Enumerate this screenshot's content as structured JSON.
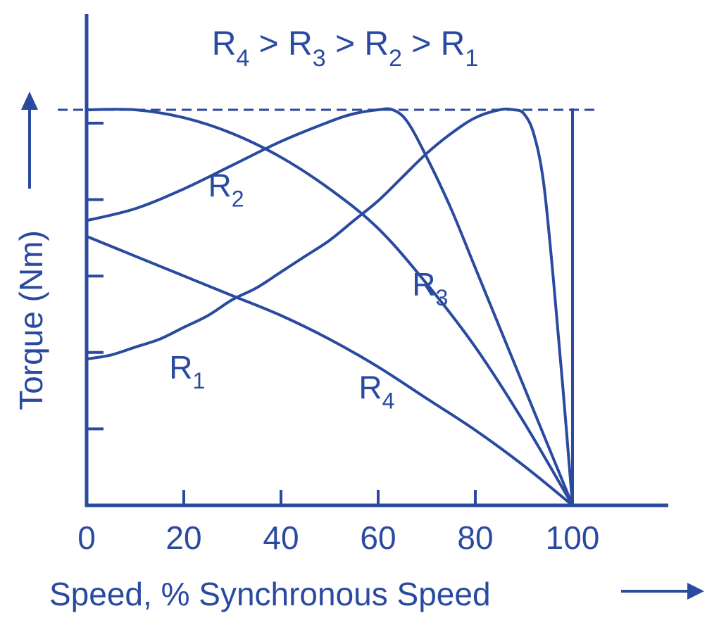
{
  "chart_data": {
    "type": "line",
    "title_parts": [
      "R",
      "4",
      " > R",
      "3",
      " > R",
      "2",
      " > R",
      "1"
    ],
    "xlabel": "Speed, % Synchronous Speed",
    "ylabel": "Torque (Nm)",
    "x_ticks": [
      "0",
      "20",
      "40",
      "60",
      "80",
      "100"
    ],
    "xlim": [
      0,
      120
    ],
    "ylim": [
      0,
      1.08
    ],
    "y_tick_count": 5,
    "reference_line_y": 1.0,
    "reference_line_x_end": 105,
    "synchronous_line_x": 100,
    "series": [
      {
        "name": "R1",
        "label": {
          "main": "R",
          "sub": "1",
          "x": 17,
          "y": 0.32
        },
        "points": [
          [
            0,
            0.37
          ],
          [
            5,
            0.38
          ],
          [
            10,
            0.4
          ],
          [
            15,
            0.42
          ],
          [
            20,
            0.45
          ],
          [
            25,
            0.48
          ],
          [
            30,
            0.52
          ],
          [
            35,
            0.55
          ],
          [
            40,
            0.59
          ],
          [
            45,
            0.63
          ],
          [
            50,
            0.67
          ],
          [
            55,
            0.72
          ],
          [
            60,
            0.77
          ],
          [
            65,
            0.83
          ],
          [
            70,
            0.89
          ],
          [
            75,
            0.94
          ],
          [
            80,
            0.98
          ],
          [
            85,
            1.0
          ],
          [
            88,
            1.0
          ],
          [
            90,
            0.99
          ],
          [
            92,
            0.94
          ],
          [
            94,
            0.82
          ],
          [
            96,
            0.58
          ],
          [
            98,
            0.3
          ],
          [
            100,
            0
          ]
        ]
      },
      {
        "name": "R2",
        "label": {
          "main": "R",
          "sub": "2",
          "x": 25,
          "y": 0.78
        },
        "points": [
          [
            0,
            0.72
          ],
          [
            10,
            0.75
          ],
          [
            20,
            0.8
          ],
          [
            30,
            0.86
          ],
          [
            40,
            0.92
          ],
          [
            50,
            0.97
          ],
          [
            55,
            0.99
          ],
          [
            60,
            1.0
          ],
          [
            63,
            1.0
          ],
          [
            66,
            0.97
          ],
          [
            70,
            0.88
          ],
          [
            75,
            0.75
          ],
          [
            80,
            0.6
          ],
          [
            85,
            0.45
          ],
          [
            90,
            0.3
          ],
          [
            95,
            0.15
          ],
          [
            100,
            0
          ]
        ]
      },
      {
        "name": "R3",
        "label": {
          "main": "R",
          "sub": "3",
          "x": 67,
          "y": 0.53
        },
        "points": [
          [
            0,
            1.0
          ],
          [
            10,
            1.0
          ],
          [
            20,
            0.98
          ],
          [
            30,
            0.94
          ],
          [
            40,
            0.88
          ],
          [
            50,
            0.8
          ],
          [
            60,
            0.7
          ],
          [
            70,
            0.56
          ],
          [
            80,
            0.4
          ],
          [
            90,
            0.21
          ],
          [
            100,
            0
          ]
        ]
      },
      {
        "name": "R4",
        "label": {
          "main": "R",
          "sub": "4",
          "x": 56,
          "y": 0.27
        },
        "points": [
          [
            0,
            0.68
          ],
          [
            10,
            0.63
          ],
          [
            20,
            0.58
          ],
          [
            30,
            0.53
          ],
          [
            40,
            0.48
          ],
          [
            50,
            0.42
          ],
          [
            60,
            0.35
          ],
          [
            70,
            0.27
          ],
          [
            80,
            0.19
          ],
          [
            90,
            0.1
          ],
          [
            100,
            0
          ]
        ]
      }
    ]
  },
  "colors": {
    "ink": "#2a4aa0"
  }
}
